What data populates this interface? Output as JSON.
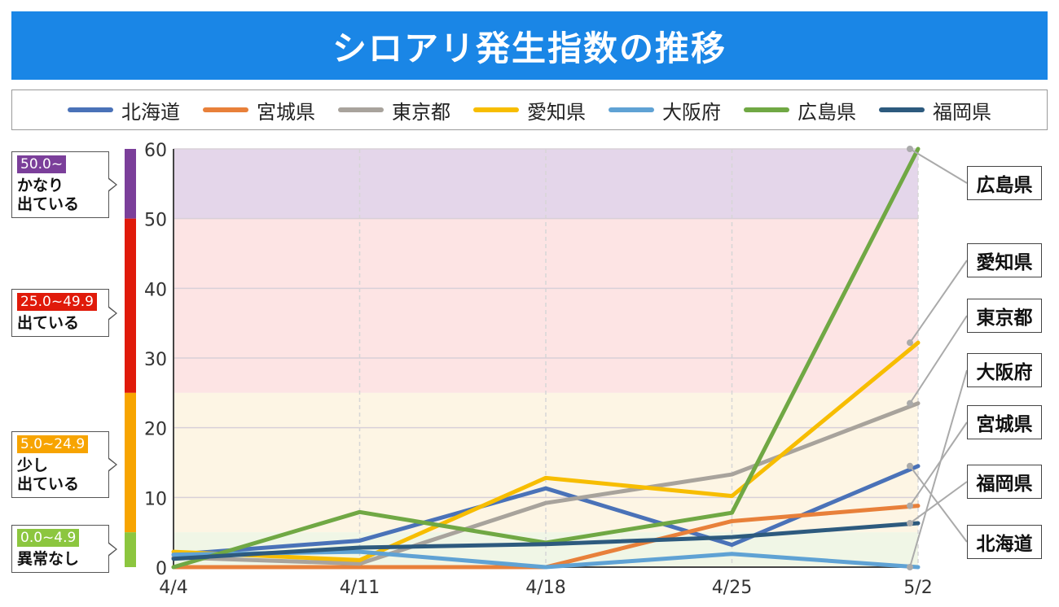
{
  "title": "シロアリ発生指数の推移",
  "colors": {
    "title_bg": "#1a86e6",
    "band_purple": "#7b3f9a",
    "band_red": "#e01a0a",
    "band_orange": "#f7a400",
    "band_green": "#8cc63f"
  },
  "levels": [
    {
      "range": "50.0~",
      "desc": "かなり\n出ている",
      "color": "#7b3f9a",
      "bg": "#e4d6ea",
      "min": 50,
      "max": 60
    },
    {
      "range": "25.0~49.9",
      "desc": "出ている",
      "color": "#e01a0a",
      "bg": "#fde4e4",
      "min": 25,
      "max": 50
    },
    {
      "range": "5.0~24.9",
      "desc": "少し\n出ている",
      "color": "#f7a400",
      "bg": "#fdf5e4",
      "min": 5,
      "max": 25
    },
    {
      "range": "0.0~4.9",
      "desc": "異常なし",
      "color": "#8cc63f",
      "bg": "#f0f6e6",
      "min": 0,
      "max": 5
    }
  ],
  "end_labels": [
    "広島県",
    "愛知県",
    "東京都",
    "大阪府",
    "宮城県",
    "福岡県",
    "北海道"
  ],
  "chart_data": {
    "type": "line",
    "title": "シロアリ発生指数の推移",
    "x": [
      "4/4",
      "4/11",
      "4/18",
      "4/25",
      "5/2"
    ],
    "yticks": [
      0,
      10,
      20,
      30,
      40,
      50,
      60
    ],
    "ylim": [
      0,
      60
    ],
    "grid": true,
    "legend_position": "top",
    "series": [
      {
        "name": "北海道",
        "color": "#4a72b8",
        "values": [
          1.8,
          3.8,
          11.3,
          3.2,
          14.5
        ]
      },
      {
        "name": "宮城県",
        "color": "#e8803a",
        "values": [
          0,
          0,
          0,
          6.6,
          8.8
        ]
      },
      {
        "name": "東京都",
        "color": "#a8a39c",
        "values": [
          1.4,
          0.5,
          9.2,
          13.3,
          23.5
        ]
      },
      {
        "name": "愛知県",
        "color": "#f7bd00",
        "values": [
          2.2,
          1.0,
          12.8,
          10.2,
          32.2
        ]
      },
      {
        "name": "大阪府",
        "color": "#5fa2d4",
        "values": [
          1.8,
          2.2,
          0,
          1.9,
          0
        ]
      },
      {
        "name": "広島県",
        "color": "#70a844",
        "values": [
          0,
          7.9,
          3.5,
          7.8,
          60
        ]
      },
      {
        "name": "福岡県",
        "color": "#2d5a7e",
        "values": [
          1.2,
          2.8,
          3.3,
          4.3,
          6.3
        ]
      }
    ]
  }
}
